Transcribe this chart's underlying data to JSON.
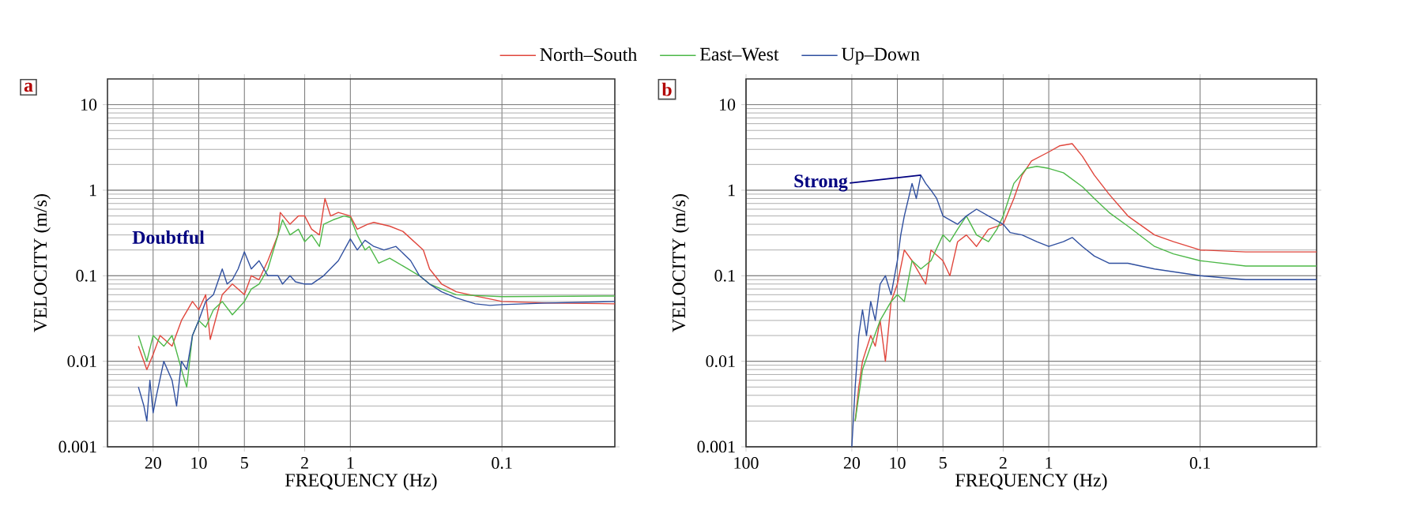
{
  "chart_data": [
    {
      "type": "line",
      "title": "a",
      "xlabel": "FREQUENCY (Hz)",
      "ylabel": "VELOCITY (m/s)",
      "log": "xy",
      "grid": true,
      "legend": "top",
      "line_style": "solid",
      "xlim": [
        40,
        0.018
      ],
      "xticks": [
        20,
        10,
        5,
        2,
        1,
        0.1
      ],
      "ylim": [
        0.001,
        20
      ],
      "yticks": [
        0.001,
        0.01,
        0.1,
        1,
        10
      ],
      "annotations": [
        "Doubtful"
      ],
      "series": [
        {
          "name": "North–South",
          "color": "#e0463c",
          "x": [
            25,
            22,
            20,
            18,
            15,
            13,
            11,
            10,
            9,
            8.4,
            7,
            6,
            5,
            4.5,
            4,
            3.5,
            3,
            2.9,
            2.5,
            2.2,
            2,
            1.8,
            1.6,
            1.47,
            1.35,
            1.2,
            1.0,
            0.9,
            0.77,
            0.7,
            0.55,
            0.45,
            0.33,
            0.3,
            0.25,
            0.2,
            0.15,
            0.1,
            0.05,
            0.018
          ],
          "values": [
            0.015,
            0.008,
            0.012,
            0.02,
            0.015,
            0.03,
            0.05,
            0.04,
            0.06,
            0.018,
            0.06,
            0.08,
            0.06,
            0.1,
            0.09,
            0.15,
            0.3,
            0.55,
            0.4,
            0.5,
            0.5,
            0.35,
            0.3,
            0.8,
            0.5,
            0.55,
            0.5,
            0.35,
            0.4,
            0.42,
            0.38,
            0.33,
            0.2,
            0.12,
            0.08,
            0.065,
            0.058,
            0.05,
            0.048,
            0.047
          ]
        },
        {
          "name": "East–West",
          "color": "#4db848",
          "x": [
            25,
            22,
            20,
            17,
            15,
            13,
            12,
            11,
            10,
            9,
            8,
            7,
            6,
            5,
            4.5,
            4,
            3.5,
            3,
            2.8,
            2.5,
            2.2,
            2,
            1.8,
            1.6,
            1.5,
            1.3,
            1.1,
            1.0,
            0.9,
            0.8,
            0.75,
            0.65,
            0.55,
            0.45,
            0.35,
            0.3,
            0.25,
            0.2,
            0.1,
            0.018
          ],
          "values": [
            0.02,
            0.01,
            0.02,
            0.015,
            0.02,
            0.008,
            0.005,
            0.02,
            0.03,
            0.025,
            0.04,
            0.05,
            0.035,
            0.05,
            0.07,
            0.08,
            0.12,
            0.3,
            0.45,
            0.3,
            0.35,
            0.25,
            0.3,
            0.22,
            0.4,
            0.45,
            0.5,
            0.48,
            0.3,
            0.2,
            0.22,
            0.14,
            0.16,
            0.13,
            0.1,
            0.08,
            0.07,
            0.06,
            0.057,
            0.058
          ]
        },
        {
          "name": "Up–Down",
          "color": "#2f4f9f",
          "x": [
            25,
            23,
            22,
            21,
            20,
            19,
            17,
            15,
            14,
            13,
            12,
            11,
            10,
            9,
            8,
            7,
            6.5,
            6,
            5.5,
            5,
            4.5,
            4,
            3.5,
            3,
            2.8,
            2.5,
            2.3,
            2,
            1.8,
            1.5,
            1.2,
            1.0,
            0.9,
            0.8,
            0.7,
            0.6,
            0.5,
            0.4,
            0.35,
            0.3,
            0.25,
            0.2,
            0.15,
            0.12,
            0.1,
            0.05,
            0.018
          ],
          "values": [
            0.005,
            0.003,
            0.002,
            0.006,
            0.0025,
            0.004,
            0.01,
            0.006,
            0.003,
            0.01,
            0.008,
            0.02,
            0.03,
            0.05,
            0.06,
            0.12,
            0.08,
            0.09,
            0.12,
            0.19,
            0.12,
            0.15,
            0.1,
            0.1,
            0.08,
            0.1,
            0.085,
            0.08,
            0.08,
            0.1,
            0.15,
            0.27,
            0.2,
            0.26,
            0.22,
            0.2,
            0.22,
            0.15,
            0.1,
            0.08,
            0.065,
            0.055,
            0.047,
            0.045,
            0.046,
            0.048,
            0.05
          ]
        }
      ]
    },
    {
      "type": "line",
      "title": "b",
      "xlabel": "FREQUENCY (Hz)",
      "ylabel": "VELOCITY (m/s)",
      "log": "xy",
      "grid": true,
      "line_style": "solid",
      "xlim": [
        100,
        0.017
      ],
      "xticks": [
        100,
        20,
        10,
        5,
        2,
        1,
        0.1
      ],
      "ylim": [
        0.001,
        20
      ],
      "yticks": [
        0.001,
        0.01,
        0.1,
        1,
        10
      ],
      "annotations": [
        {
          "text": "Strong",
          "x": 7,
          "y": 1.5
        }
      ],
      "series": [
        {
          "color": "#e0463c",
          "x": [
            19,
            18,
            17,
            15,
            14,
            13,
            12,
            11,
            10,
            9,
            8,
            7,
            6.5,
            6,
            5,
            4.5,
            4,
            3.5,
            3,
            2.5,
            2,
            1.7,
            1.5,
            1.3,
            1.0,
            0.85,
            0.7,
            0.6,
            0.5,
            0.4,
            0.3,
            0.2,
            0.15,
            0.1,
            0.05,
            0.017
          ],
          "values": [
            0.002,
            0.005,
            0.01,
            0.02,
            0.015,
            0.03,
            0.01,
            0.05,
            0.08,
            0.2,
            0.15,
            0.1,
            0.08,
            0.2,
            0.15,
            0.1,
            0.25,
            0.3,
            0.22,
            0.35,
            0.4,
            0.8,
            1.5,
            2.2,
            2.8,
            3.3,
            3.5,
            2.5,
            1.5,
            0.9,
            0.5,
            0.3,
            0.25,
            0.2,
            0.19,
            0.19
          ]
        },
        {
          "color": "#4db848",
          "x": [
            19,
            17,
            15,
            13,
            11,
            10,
            9,
            8,
            7,
            6,
            5,
            4.5,
            4,
            3.5,
            3,
            2.5,
            2.2,
            2,
            1.7,
            1.4,
            1.2,
            1.0,
            0.8,
            0.6,
            0.5,
            0.4,
            0.3,
            0.2,
            0.15,
            0.1,
            0.05,
            0.017
          ],
          "values": [
            0.002,
            0.008,
            0.015,
            0.03,
            0.05,
            0.06,
            0.05,
            0.15,
            0.12,
            0.15,
            0.3,
            0.25,
            0.35,
            0.5,
            0.3,
            0.25,
            0.35,
            0.5,
            1.2,
            1.8,
            1.9,
            1.8,
            1.6,
            1.1,
            0.8,
            0.55,
            0.38,
            0.22,
            0.18,
            0.15,
            0.13,
            0.13
          ]
        },
        {
          "color": "#2f4f9f",
          "x": [
            20,
            19,
            18,
            17,
            16,
            15,
            14,
            13,
            12,
            11,
            10,
            9.5,
            9,
            8,
            7.5,
            7,
            6.5,
            6,
            5.5,
            5,
            4.5,
            4,
            3.5,
            3,
            2.5,
            2,
            1.8,
            1.5,
            1.2,
            1.0,
            0.8,
            0.7,
            0.6,
            0.5,
            0.4,
            0.3,
            0.2,
            0.1,
            0.05,
            0.017
          ],
          "values": [
            0.001,
            0.005,
            0.02,
            0.04,
            0.02,
            0.05,
            0.03,
            0.08,
            0.1,
            0.06,
            0.15,
            0.3,
            0.5,
            1.2,
            0.8,
            1.5,
            1.2,
            1.0,
            0.8,
            0.5,
            0.45,
            0.4,
            0.5,
            0.6,
            0.5,
            0.4,
            0.32,
            0.3,
            0.25,
            0.22,
            0.25,
            0.28,
            0.22,
            0.17,
            0.14,
            0.14,
            0.12,
            0.1,
            0.09,
            0.09
          ]
        }
      ]
    }
  ]
}
